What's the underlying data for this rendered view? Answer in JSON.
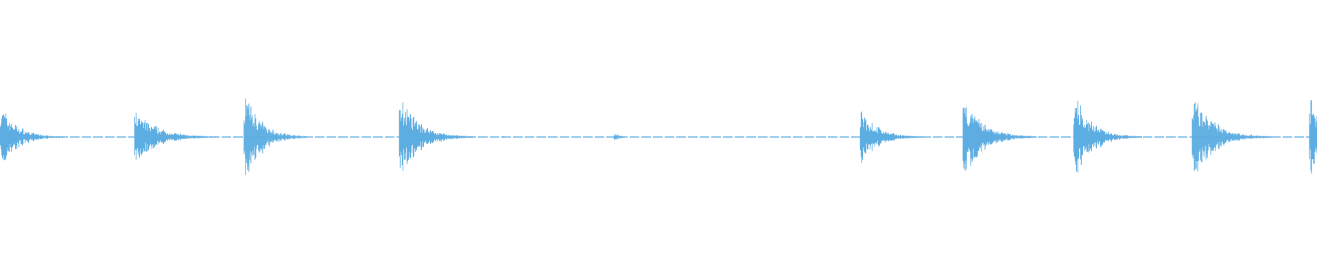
{
  "chart_data": {
    "type": "waveform",
    "title": "",
    "xlabel": "",
    "ylabel": "",
    "grid": false,
    "legend": "none",
    "color": "#5dade2",
    "background": "#ffffff",
    "amplitude_range": [
      -1,
      1
    ],
    "bursts": [
      {
        "onset": 0.0,
        "peak": 0.28,
        "decay": 0.012
      },
      {
        "onset": 0.102,
        "peak": 0.23,
        "decay": 0.016
      },
      {
        "onset": 0.185,
        "peak": 0.4,
        "decay": 0.012
      },
      {
        "onset": 0.303,
        "peak": 0.35,
        "decay": 0.014
      },
      {
        "onset": 0.381,
        "peak": 0.01,
        "decay": 0.002
      },
      {
        "onset": 0.466,
        "peak": 0.04,
        "decay": 0.004
      },
      {
        "onset": 0.653,
        "peak": 0.25,
        "decay": 0.012
      },
      {
        "onset": 0.731,
        "peak": 0.35,
        "decay": 0.014
      },
      {
        "onset": 0.815,
        "peak": 0.36,
        "decay": 0.013
      },
      {
        "onset": 0.905,
        "peak": 0.37,
        "decay": 0.015
      },
      {
        "onset": 0.994,
        "peak": 0.33,
        "decay": 0.01
      }
    ]
  }
}
